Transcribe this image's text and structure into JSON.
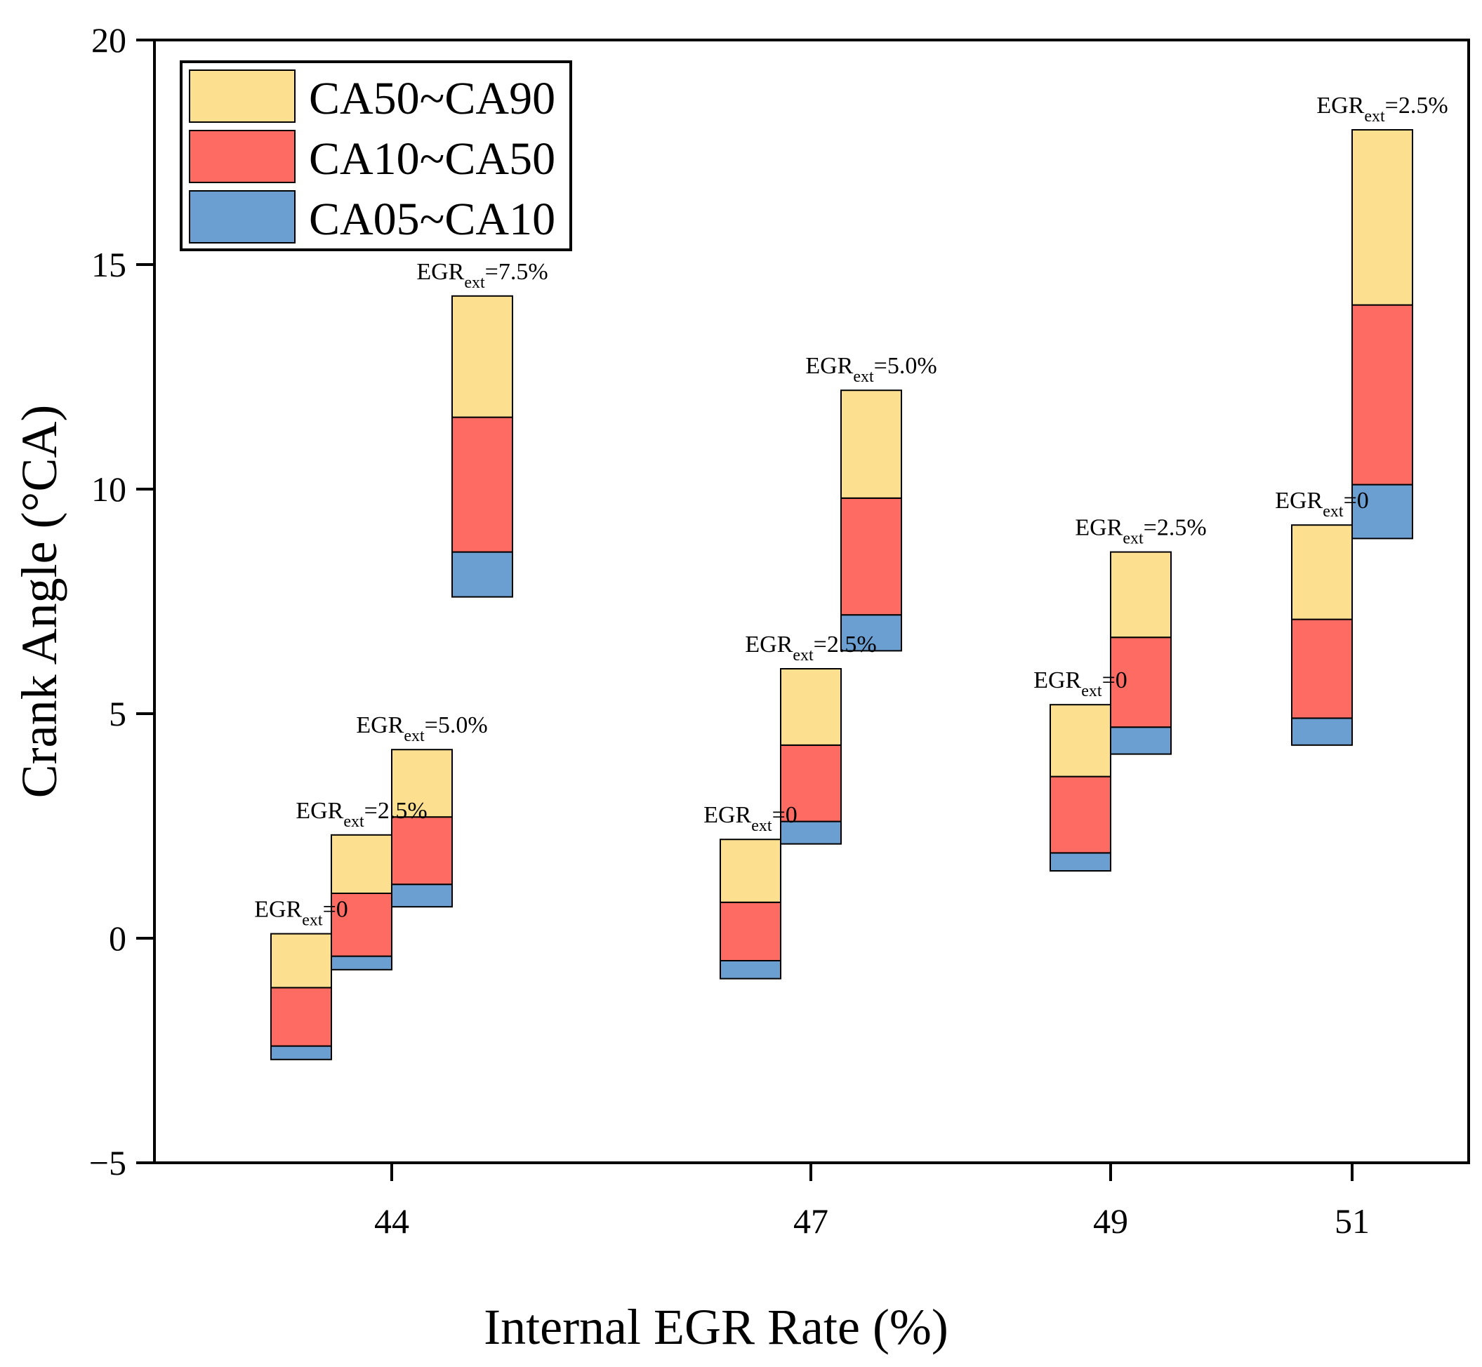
{
  "chart_data": {
    "type": "floating-stacked-bar",
    "xlabel": "Internal EGR Rate (%)",
    "ylabel": "Crank Angle (°CA)",
    "ylim": [
      -5,
      20
    ],
    "yticks": [
      -5,
      0,
      5,
      10,
      15,
      20
    ],
    "xticks": [
      "44",
      "47",
      "49",
      "51"
    ],
    "legend": {
      "position": "top-left",
      "entries": [
        "CA50~CA90",
        "CA10~CA50",
        "CA05~CA10"
      ]
    },
    "colors": {
      "CA50~CA90": "#fde08f",
      "CA10~CA50": "#fe6b62",
      "CA05~CA10": "#6b9fd2"
    },
    "annotation_parts": {
      "prefix": "EGR",
      "subscript": "ext"
    },
    "bars": [
      {
        "group": "44",
        "offset": -1.5,
        "egr_ext": "=0",
        "CA05": -2.7,
        "CA10": -2.4,
        "CA50": -1.1,
        "CA90": 0.1
      },
      {
        "group": "44",
        "offset": -0.5,
        "egr_ext": "=2.5%",
        "CA05": -0.7,
        "CA10": -0.4,
        "CA50": 1.0,
        "CA90": 2.3
      },
      {
        "group": "44",
        "offset": 0.5,
        "egr_ext": "=5.0%",
        "CA05": 0.7,
        "CA10": 1.2,
        "CA50": 2.7,
        "CA90": 4.2
      },
      {
        "group": "44",
        "offset": 1.5,
        "egr_ext": "=7.5%",
        "CA05": 7.6,
        "CA10": 8.6,
        "CA50": 11.6,
        "CA90": 14.3
      },
      {
        "group": "47",
        "offset": -1.0,
        "egr_ext": "=0",
        "CA05": -0.9,
        "CA10": -0.5,
        "CA50": 0.8,
        "CA90": 2.2
      },
      {
        "group": "47",
        "offset": 0.0,
        "egr_ext": "=2.5%",
        "CA05": 2.1,
        "CA10": 2.6,
        "CA50": 4.3,
        "CA90": 6.0
      },
      {
        "group": "47",
        "offset": 1.0,
        "egr_ext": "=5.0%",
        "CA05": 6.4,
        "CA10": 7.2,
        "CA50": 9.8,
        "CA90": 12.2
      },
      {
        "group": "49",
        "offset": -0.5,
        "egr_ext": "=0",
        "CA05": 1.5,
        "CA10": 1.9,
        "CA50": 3.6,
        "CA90": 5.2
      },
      {
        "group": "49",
        "offset": 0.5,
        "egr_ext": "=2.5%",
        "CA05": 4.1,
        "CA10": 4.7,
        "CA50": 6.7,
        "CA90": 8.6
      },
      {
        "group": "51",
        "offset": -0.5,
        "egr_ext": "=0",
        "CA05": 4.3,
        "CA10": 4.9,
        "CA50": 7.1,
        "CA90": 9.2
      },
      {
        "group": "51",
        "offset": 0.5,
        "egr_ext": "=2.5%",
        "CA05": 8.9,
        "CA10": 10.1,
        "CA50": 14.1,
        "CA90": 18.0
      }
    ]
  }
}
